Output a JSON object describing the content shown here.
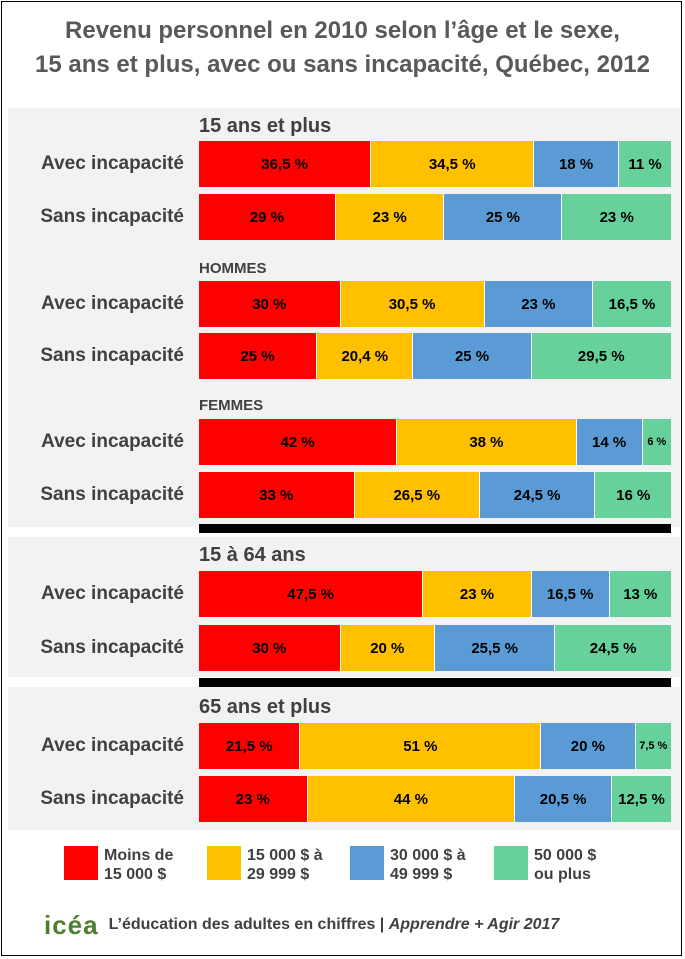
{
  "title_line1": "Revenu personnel en 2010 selon l’âge et le sexe,",
  "title_line2": "15 ans et plus, avec ou sans incapacité, Québec, 2012",
  "colors": {
    "c0": "#ff0000",
    "c1": "#ffc000",
    "c2": "#5b9bd5",
    "c3": "#66d19a"
  },
  "chart_data": {
    "type": "bar",
    "stacked": true,
    "orientation": "horizontal",
    "unit": "%",
    "groups": [
      {
        "title": "15 ans et plus",
        "rows": [
          {
            "label": "Avec incapacité",
            "values": [
              36.5,
              34.5,
              18,
              11
            ],
            "labels": [
              "36,5 %",
              "34,5 %",
              "18 %",
              "11 %"
            ]
          },
          {
            "label": "Sans incapacité",
            "values": [
              29,
              23,
              25,
              23
            ],
            "labels": [
              "29 %",
              "23 %",
              "25 %",
              "23 %"
            ]
          }
        ]
      },
      {
        "title": "HOMMES",
        "rows": [
          {
            "label": "Avec incapacité",
            "values": [
              30,
              30.5,
              23,
              16.5
            ],
            "labels": [
              "30 %",
              "30,5 %",
              "23 %",
              "16,5 %"
            ]
          },
          {
            "label": "Sans incapacité",
            "values": [
              25,
              20.4,
              25,
              29.5
            ],
            "labels": [
              "25 %",
              "20,4 %",
              "25 %",
              "29,5 %"
            ]
          }
        ]
      },
      {
        "title": "FEMMES",
        "rows": [
          {
            "label": "Avec incapacité",
            "values": [
              42,
              38,
              14,
              6
            ],
            "labels": [
              "42 %",
              "38 %",
              "14 %",
              "6 %"
            ]
          },
          {
            "label": "Sans incapacité",
            "values": [
              33,
              26.5,
              24.5,
              16
            ],
            "labels": [
              "33 %",
              "26,5 %",
              "24,5 %",
              "16 %"
            ]
          }
        ]
      },
      {
        "title": "15 à 64 ans",
        "rows": [
          {
            "label": "Avec incapacité",
            "values": [
              47.5,
              23,
              16.5,
              13
            ],
            "labels": [
              "47,5 %",
              "23 %",
              "16,5 %",
              "13 %"
            ]
          },
          {
            "label": "Sans incapacité",
            "values": [
              30,
              20,
              25.5,
              24.5
            ],
            "labels": [
              "30 %",
              "20 %",
              "25,5 %",
              "24,5 %"
            ]
          }
        ]
      },
      {
        "title": "65 ans et plus",
        "rows": [
          {
            "label": "Avec incapacité",
            "values": [
              21.5,
              51,
              20,
              7.5
            ],
            "labels": [
              "21,5 %",
              "51 %",
              "20 %",
              "7,5 %"
            ]
          },
          {
            "label": "Sans incapacité",
            "values": [
              23,
              44,
              20.5,
              12.5
            ],
            "labels": [
              "23 %",
              "44 %",
              "20,5 %",
              "12,5 %"
            ]
          }
        ]
      }
    ],
    "legend": [
      {
        "line1": "Moins de",
        "line2": "15 000 $"
      },
      {
        "line1": "15 000 $ à",
        "line2": "29 999 $"
      },
      {
        "line1": "30 000 $ à",
        "line2": "49 999 $"
      },
      {
        "line1": "50 000 $",
        "line2": "ou plus"
      }
    ]
  },
  "footer": {
    "logo": "icéa",
    "text": "L’éducation des adultes en chiffres | ",
    "italic": "Apprendre + Agir 2017"
  }
}
